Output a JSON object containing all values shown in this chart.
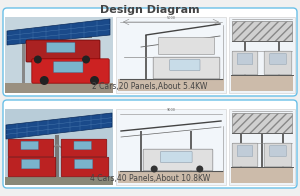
{
  "title": "Design Diagram",
  "title_fontsize": 8,
  "title_color": "#444444",
  "title_fontweight": "bold",
  "background_color": "#f0f0f0",
  "row1_label": "2 Cars,20 Panels,About 5.4KW",
  "row2_label": "4 Cars,40 Panels,About 10.8KW",
  "label_fontsize": 5.5,
  "label_color": "#444444",
  "border_color": "#6ac0e8",
  "border_lw": 1.0,
  "row_bg": "#ffffff",
  "photo_bg1": "#c8d8e0",
  "photo_bg2": "#b8ccd8",
  "sketch_bg": "#f0f4f8",
  "front_bg": "#eef2f6",
  "panel_blue": "#2a5fa0",
  "panel_light": "#4a7fc0",
  "car_red": "#aa2222",
  "car_red2": "#cc3333",
  "ground_color": "#b0a898",
  "hatch_color": "#888888",
  "line_color": "#555555",
  "dim_color": "#777777",
  "pole_color": "#666666"
}
